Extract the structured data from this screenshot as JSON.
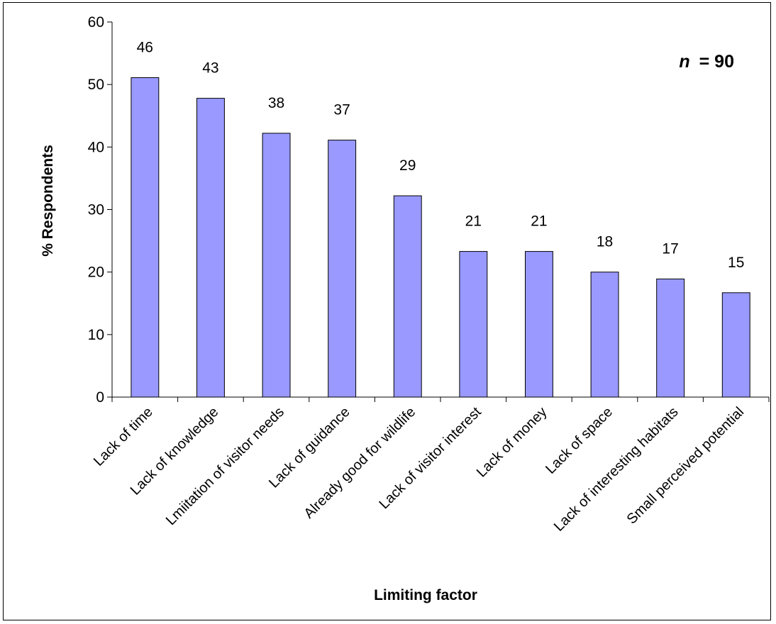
{
  "chart_data": {
    "type": "bar",
    "categories": [
      "Lack of time",
      "Lack of knowledge",
      "Lmiitation of visitor needs",
      "Lack of guidance",
      "Already good for wildlife",
      "Lack of visitor interest",
      "Lack of money",
      "Lack of space",
      "Lack of interesting habitats",
      "Small perceived potential"
    ],
    "values": [
      51.1,
      47.8,
      42.2,
      41.1,
      32.2,
      23.3,
      23.3,
      20.0,
      18.9,
      16.7
    ],
    "data_labels": [
      "46",
      "43",
      "38",
      "37",
      "29",
      "21",
      "21",
      "18",
      "17",
      "15"
    ],
    "xlabel": "Limiting factor",
    "ylabel": "% Respondents",
    "ylim": [
      0,
      60
    ],
    "yticks": [
      "0",
      "10",
      "20",
      "30",
      "40",
      "50",
      "60"
    ],
    "annotation": {
      "italic": "n",
      "text": "= 90"
    },
    "grid": false,
    "legend": "none",
    "bar_color": "#9999ff",
    "bar_stroke": "#000000"
  }
}
